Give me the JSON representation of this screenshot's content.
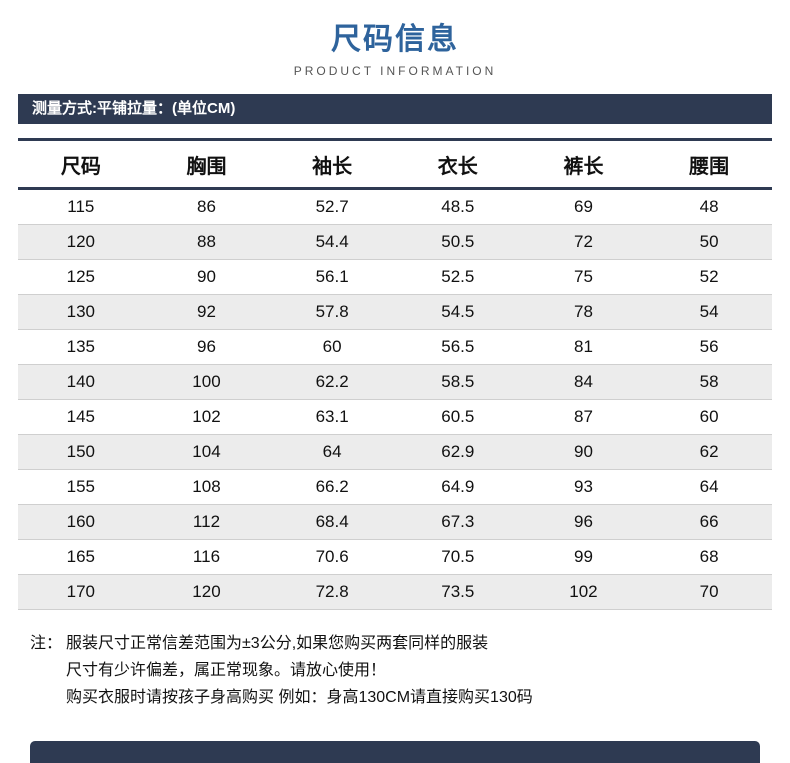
{
  "header": {
    "title": "尺码信息",
    "subtitle": "PRODUCT INFORMATION"
  },
  "measure_bar": {
    "label": "测量方式:平铺拉量：(单位CM)"
  },
  "chart_data": {
    "type": "table",
    "columns": [
      "尺码",
      "胸围",
      "袖长",
      "衣长",
      "裤长",
      "腰围"
    ],
    "rows": [
      [
        "115",
        "86",
        "52.7",
        "48.5",
        "69",
        "48"
      ],
      [
        "120",
        "88",
        "54.4",
        "50.5",
        "72",
        "50"
      ],
      [
        "125",
        "90",
        "56.1",
        "52.5",
        "75",
        "52"
      ],
      [
        "130",
        "92",
        "57.8",
        "54.5",
        "78",
        "54"
      ],
      [
        "135",
        "96",
        "60",
        "56.5",
        "81",
        "56"
      ],
      [
        "140",
        "100",
        "62.2",
        "58.5",
        "84",
        "58"
      ],
      [
        "145",
        "102",
        "63.1",
        "60.5",
        "87",
        "60"
      ],
      [
        "150",
        "104",
        "64",
        "62.9",
        "90",
        "62"
      ],
      [
        "155",
        "108",
        "66.2",
        "64.9",
        "93",
        "64"
      ],
      [
        "160",
        "112",
        "68.4",
        "67.3",
        "96",
        "66"
      ],
      [
        "165",
        "116",
        "70.6",
        "70.5",
        "99",
        "68"
      ],
      [
        "170",
        "120",
        "72.8",
        "73.5",
        "102",
        "70"
      ]
    ]
  },
  "notes": {
    "prefix": "注：",
    "lines": [
      "服装尺寸正常信差范围为±3公分,如果您购买两套同样的服装",
      "尺寸有少许偏差，属正常现象。请放心使用！",
      "购买衣服时请按孩子身高购买 例如：身高130CM请直接购买130码"
    ]
  },
  "colors": {
    "accent_blue": "#2e639c",
    "navy_bar": "#2e3a52",
    "row_alt": "#ececec",
    "row_divider": "#cfcfcf"
  }
}
